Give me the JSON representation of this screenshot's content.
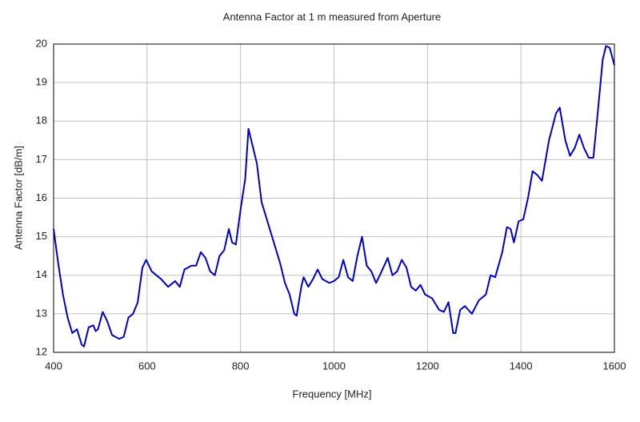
{
  "chart_data": {
    "type": "line",
    "title": "Antenna Factor at 1 m measured from Aperture",
    "xlabel": "Frequency [MHz]",
    "ylabel": "Antenna Factor [dB/m]",
    "x": [
      400,
      410,
      420,
      430,
      440,
      450,
      460,
      465,
      475,
      485,
      490,
      495,
      505,
      515,
      525,
      540,
      550,
      560,
      570,
      580,
      590,
      598,
      610,
      630,
      645,
      660,
      670,
      680,
      695,
      705,
      715,
      725,
      735,
      745,
      755,
      765,
      775,
      782,
      790,
      800,
      810,
      817,
      825,
      835,
      845,
      855,
      865,
      875,
      885,
      895,
      905,
      915,
      920,
      930,
      935,
      945,
      955,
      965,
      975,
      990,
      1000,
      1010,
      1020,
      1030,
      1040,
      1050,
      1060,
      1070,
      1080,
      1090,
      1100,
      1115,
      1125,
      1135,
      1145,
      1155,
      1165,
      1175,
      1185,
      1195,
      1210,
      1225,
      1235,
      1245,
      1255,
      1260,
      1270,
      1280,
      1295,
      1310,
      1325,
      1335,
      1345,
      1360,
      1370,
      1378,
      1385,
      1395,
      1405,
      1415,
      1425,
      1435,
      1445,
      1460,
      1475,
      1483,
      1495,
      1505,
      1515,
      1525,
      1535,
      1545,
      1555,
      1565,
      1575,
      1582,
      1590,
      1600
    ],
    "series": [
      {
        "name": "Antenna Factor",
        "color": "#0000c8",
        "values": [
          15.2,
          14.3,
          13.5,
          12.9,
          12.5,
          12.6,
          12.2,
          12.15,
          12.65,
          12.7,
          12.55,
          12.6,
          13.05,
          12.8,
          12.45,
          12.35,
          12.4,
          12.9,
          13.0,
          13.3,
          14.2,
          14.4,
          14.1,
          13.9,
          13.7,
          13.85,
          13.7,
          14.15,
          14.25,
          14.25,
          14.6,
          14.45,
          14.1,
          14.0,
          14.5,
          14.65,
          15.2,
          14.85,
          14.8,
          15.7,
          16.5,
          17.8,
          17.4,
          16.9,
          15.9,
          15.5,
          15.1,
          14.7,
          14.3,
          13.8,
          13.5,
          13.0,
          12.95,
          13.7,
          13.95,
          13.7,
          13.9,
          14.15,
          13.9,
          13.8,
          13.85,
          13.95,
          14.4,
          13.95,
          13.85,
          14.5,
          15.0,
          14.25,
          14.1,
          13.8,
          14.05,
          14.45,
          14.0,
          14.1,
          14.4,
          14.2,
          13.7,
          13.6,
          13.75,
          13.5,
          13.4,
          13.1,
          13.05,
          13.3,
          12.5,
          12.5,
          13.1,
          13.2,
          13.0,
          13.35,
          13.5,
          14.0,
          13.95,
          14.6,
          15.25,
          15.2,
          14.85,
          15.4,
          15.45,
          16.0,
          16.7,
          16.6,
          16.45,
          17.5,
          18.2,
          18.35,
          17.5,
          17.1,
          17.3,
          17.65,
          17.3,
          17.05,
          17.05,
          18.3,
          19.6,
          19.95,
          19.9,
          19.45
        ]
      }
    ],
    "xlim": [
      400,
      1600
    ],
    "xticks": [
      400,
      600,
      800,
      1000,
      1200,
      1400,
      1600
    ],
    "ylim": [
      12,
      20
    ],
    "yticks": [
      12,
      13,
      14,
      15,
      16,
      17,
      18,
      19,
      20
    ],
    "grid": true
  }
}
